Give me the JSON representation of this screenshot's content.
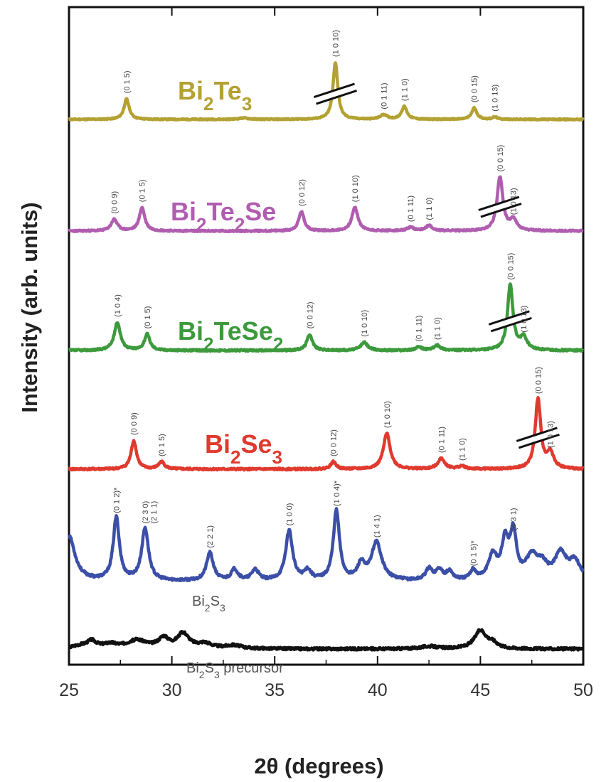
{
  "chart_data": {
    "type": "line",
    "xlabel": "2θ (degrees)",
    "ylabel": "Intensity (arb. units)",
    "xlim": [
      25,
      50
    ],
    "xticks": [
      25,
      30,
      35,
      40,
      45,
      50
    ],
    "grid": false,
    "series": [
      {
        "name": "Bi2Te3",
        "label_parts": [
          [
            "Bi",
            ""
          ],
          [
            "2",
            "sub"
          ],
          [
            "Te",
            ""
          ],
          [
            "3",
            "sub"
          ]
        ],
        "color": "#b3a133",
        "baseline": 0,
        "peaks": [
          [
            27.8,
            45,
            0.15
          ],
          [
            33.5,
            3,
            0.3
          ],
          [
            37.95,
            125,
            0.14
          ],
          [
            40.3,
            10,
            0.2
          ],
          [
            41.3,
            28,
            0.16
          ],
          [
            44.7,
            25,
            0.15
          ],
          [
            45.7,
            5,
            0.15
          ]
        ],
        "break_at": 37.95,
        "peak_labels": [
          {
            "x": 27.8,
            "text": "(0 1 5)"
          },
          {
            "x": 37.95,
            "text": "(1 0 10)"
          },
          {
            "x": 40.3,
            "text": "(0 1 11)"
          },
          {
            "x": 41.3,
            "text": "(1 1 0)"
          },
          {
            "x": 44.7,
            "text": "(0 0 15)"
          },
          {
            "x": 45.7,
            "text": "(1 0 13)"
          }
        ]
      },
      {
        "name": "Bi2Te2Se",
        "label_parts": [
          [
            "Bi",
            ""
          ],
          [
            "2",
            "sub"
          ],
          [
            "Te",
            ""
          ],
          [
            "2",
            "sub"
          ],
          [
            "Se",
            ""
          ]
        ],
        "color": "#b05db0",
        "baseline": 0,
        "peaks": [
          [
            27.2,
            20,
            0.18
          ],
          [
            28.55,
            40,
            0.16
          ],
          [
            36.3,
            33,
            0.16
          ],
          [
            38.9,
            40,
            0.18
          ],
          [
            41.6,
            6,
            0.2
          ],
          [
            42.5,
            9,
            0.2
          ],
          [
            45.95,
            92,
            0.17
          ],
          [
            46.6,
            18,
            0.2
          ]
        ],
        "break_at": 45.95,
        "peak_labels": [
          {
            "x": 27.2,
            "text": "(0 0 9)"
          },
          {
            "x": 28.55,
            "text": "(0 1 5)"
          },
          {
            "x": 36.3,
            "text": "(0 0 12)"
          },
          {
            "x": 38.9,
            "text": "(1 0 10)"
          },
          {
            "x": 41.6,
            "text": "(0 1 11)"
          },
          {
            "x": 42.5,
            "text": "(1 1 0)"
          },
          {
            "x": 45.95,
            "text": "(0 0 15)"
          },
          {
            "x": 46.6,
            "text": "(1 0 13)"
          }
        ]
      },
      {
        "name": "Bi2TeSe2",
        "label_parts": [
          [
            "Bi",
            ""
          ],
          [
            "2",
            "sub"
          ],
          [
            "TeSe",
            ""
          ],
          [
            "2",
            "sub"
          ]
        ],
        "color": "#3c9a3c",
        "baseline": 0,
        "peaks": [
          [
            27.35,
            45,
            0.18
          ],
          [
            28.8,
            26,
            0.16
          ],
          [
            36.7,
            26,
            0.16
          ],
          [
            39.35,
            13,
            0.2
          ],
          [
            42.0,
            5,
            0.2
          ],
          [
            42.9,
            8,
            0.2
          ],
          [
            46.45,
            105,
            0.16
          ],
          [
            47.1,
            20,
            0.2
          ]
        ],
        "break_at": 46.45,
        "peak_labels": [
          {
            "x": 27.35,
            "text": "(1 0 4)"
          },
          {
            "x": 28.8,
            "text": "(0 1 5)"
          },
          {
            "x": 36.7,
            "text": "(0 0 12)"
          },
          {
            "x": 39.35,
            "text": "(1 0 10)"
          },
          {
            "x": 42.0,
            "text": "(0 1 11)"
          },
          {
            "x": 42.9,
            "text": "(1 1 0)"
          },
          {
            "x": 46.45,
            "text": "(0 0 15)"
          },
          {
            "x": 47.1,
            "text": "(1 0 13)"
          }
        ]
      },
      {
        "name": "Bi2Se3",
        "label_parts": [
          [
            "Bi",
            ""
          ],
          [
            "2",
            "sub"
          ],
          [
            "Se",
            ""
          ],
          [
            "3",
            "sub"
          ]
        ],
        "color": "#e03a2e",
        "baseline": 0,
        "peaks": [
          [
            28.15,
            40,
            0.16
          ],
          [
            29.5,
            10,
            0.18
          ],
          [
            37.85,
            10,
            0.16
          ],
          [
            40.45,
            50,
            0.2
          ],
          [
            43.1,
            15,
            0.2
          ],
          [
            44.1,
            4,
            0.2
          ],
          [
            47.8,
            98,
            0.16
          ],
          [
            48.4,
            22,
            0.2
          ]
        ],
        "break_at": 47.8,
        "peak_labels": [
          {
            "x": 28.15,
            "text": "(0 0 9)"
          },
          {
            "x": 29.5,
            "text": "(0 1 5)"
          },
          {
            "x": 37.85,
            "text": "(0 0 12)"
          },
          {
            "x": 40.45,
            "text": "(1 0 10)"
          },
          {
            "x": 43.1,
            "text": "(0 1 11)"
          },
          {
            "x": 44.1,
            "text": "(1 1 0)"
          },
          {
            "x": 47.8,
            "text": "(0 0 15)"
          },
          {
            "x": 48.4,
            "text": "(1 0 13)"
          }
        ]
      },
      {
        "name": "Bi2S3",
        "label_parts": [
          [
            "Bi",
            ""
          ],
          [
            "2",
            "sub"
          ],
          [
            "S",
            ""
          ],
          [
            "3",
            "sub"
          ]
        ],
        "color": "#3b4fa8",
        "baseline": 0,
        "peaks": [
          [
            25.0,
            65,
            0.35
          ],
          [
            27.3,
            90,
            0.18
          ],
          [
            28.7,
            75,
            0.2
          ],
          [
            31.85,
            40,
            0.2
          ],
          [
            33.05,
            16,
            0.2
          ],
          [
            34.05,
            16,
            0.2
          ],
          [
            35.7,
            72,
            0.2
          ],
          [
            36.6,
            14,
            0.2
          ],
          [
            38.0,
            100,
            0.18
          ],
          [
            39.2,
            22,
            0.2
          ],
          [
            39.95,
            55,
            0.3
          ],
          [
            42.5,
            16,
            0.2
          ],
          [
            43.0,
            14,
            0.2
          ],
          [
            43.5,
            12,
            0.2
          ],
          [
            44.65,
            14,
            0.16
          ],
          [
            45.6,
            35,
            0.25
          ],
          [
            46.2,
            52,
            0.2
          ],
          [
            46.6,
            65,
            0.18
          ],
          [
            47.5,
            32,
            0.35
          ],
          [
            48.0,
            18,
            0.3
          ],
          [
            48.9,
            38,
            0.35
          ],
          [
            49.6,
            26,
            0.3
          ]
        ],
        "peak_labels": [
          {
            "x": 27.3,
            "text": "(0 1 2)*"
          },
          {
            "x": 28.7,
            "text": "(2 3 0)",
            "text2": "(2 1 1)"
          },
          {
            "x": 31.85,
            "text": "(2 2 1)"
          },
          {
            "x": 35.7,
            "text": "(1 0 0)"
          },
          {
            "x": 38.0,
            "text": "(1 0 4)*"
          },
          {
            "x": 39.95,
            "text": "(1 4 1)"
          },
          {
            "x": 44.65,
            "text": "(0 1 5)*"
          },
          {
            "x": 46.6,
            "text": "(4 3 1)"
          }
        ]
      },
      {
        "name": "Bi2S3 precursor",
        "label_parts": [
          [
            "Bi",
            ""
          ],
          [
            "2",
            "sub"
          ],
          [
            "S",
            ""
          ],
          [
            "3",
            "sub"
          ],
          [
            " precursor",
            ""
          ]
        ],
        "color": "#111111",
        "baseline": 0,
        "peaks": [
          [
            25.5,
            3,
            0.4
          ],
          [
            26.1,
            9,
            0.3
          ],
          [
            27.0,
            5,
            0.4
          ],
          [
            28.3,
            10,
            0.6
          ],
          [
            29.6,
            12,
            0.3
          ],
          [
            30.55,
            18,
            0.35
          ],
          [
            31.6,
            6,
            0.4
          ],
          [
            33.0,
            4,
            0.5
          ],
          [
            42.5,
            3,
            0.5
          ],
          [
            45.0,
            22,
            0.35
          ],
          [
            45.6,
            6,
            0.3
          ]
        ]
      }
    ]
  }
}
